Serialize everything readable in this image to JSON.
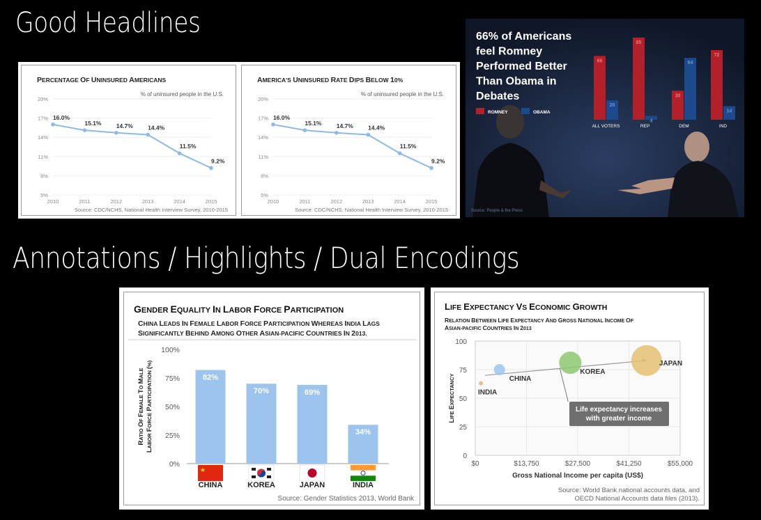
{
  "sections": {
    "good_headlines": "Good Headlines",
    "annotations": "Annotations / Highlights / Dual Encodings"
  },
  "chart_data": [
    {
      "type": "line",
      "title": "Percentage of Uninsured Americans",
      "subtitle": "% of uninsured people in the U.S.",
      "source": "Source: CDC/NCHS, National Health Interview Survey, 2010-2015",
      "x": [
        "2010",
        "2011",
        "2012",
        "2013",
        "2014",
        "2015"
      ],
      "values": [
        16.0,
        15.1,
        14.7,
        14.4,
        11.5,
        9.2
      ],
      "labels": [
        "16.0%",
        "15.1%",
        "14.7%",
        "14.4%",
        "11.5%",
        "9.2%"
      ],
      "yticks": [
        "20%",
        "17%",
        "14%",
        "11%",
        "8%",
        "5%"
      ],
      "ylim": [
        5,
        20
      ],
      "color": "#8db9e4"
    },
    {
      "type": "line",
      "title": "America's Uninsured Rate Dips below 10%",
      "subtitle": "% of uninsured people in the U.S.",
      "source": "Source: CDC/NCHS, National Health Interview Survey, 2010-2015",
      "x": [
        "2010",
        "2011",
        "2012",
        "2013",
        "2014",
        "2015"
      ],
      "values": [
        16.0,
        15.1,
        14.7,
        14.4,
        11.5,
        9.2
      ],
      "labels": [
        "16.0%",
        "15.1%",
        "14.7%",
        "14.4%",
        "11.5%",
        "9.2%"
      ],
      "yticks": [
        "20%",
        "17%",
        "14%",
        "11%",
        "8%",
        "5%"
      ],
      "ylim": [
        5,
        20
      ],
      "color": "#8db9e4"
    },
    {
      "type": "bar",
      "title": "66% of Americans feel Romney Performed Better Than Obama in Debates",
      "title_lines": [
        "66% of Americans",
        "feel Romney",
        "Performed Better",
        "Than Obama in",
        "Debates"
      ],
      "categories": [
        "ALL VOTERS",
        "REP",
        "DEM",
        "IND"
      ],
      "series": [
        {
          "name": "ROMNEY",
          "values": [
            66,
            85,
            30,
            72
          ],
          "labels": [
            "66",
            "85",
            "30",
            "72"
          ],
          "color": "#b3202a"
        },
        {
          "name": "OBAMA",
          "values": [
            20,
            4,
            64,
            14
          ],
          "labels": [
            "20",
            "4",
            "64",
            "14"
          ],
          "color": "#1d4a8c"
        }
      ],
      "ylim": [
        0,
        90
      ],
      "source": "Source: People & the Press"
    },
    {
      "type": "bar",
      "title": "Gender equality in Labor force participation",
      "subtitle_lines": [
        "China leads in female labor force participation whereas India lags",
        "significantly behind among other Asian-Pacific countries in 2013."
      ],
      "ylabel_lines": [
        "Ratio of female to male",
        "labor force participation (%)"
      ],
      "categories": [
        "CHINA",
        "KOREA",
        "JAPAN",
        "INDIA"
      ],
      "values": [
        82,
        70,
        69,
        34
      ],
      "labels": [
        "82%",
        "70%",
        "69%",
        "34%"
      ],
      "yticks": [
        "100%",
        "75%",
        "50%",
        "25%",
        "0%"
      ],
      "ylim": [
        0,
        100
      ],
      "color": "#9cc4ec",
      "source": "Source: Gender Statistics 2013, World Bank"
    },
    {
      "type": "scatter",
      "title": "Life expectancy vs Economic growth",
      "subtitle_lines": [
        "Relation between life expectancy and gross national income of",
        "Asian-Pacific countries in 2013"
      ],
      "xlabel": "Gross National Income per capita (US$)",
      "ylabel": "Life Expectancy",
      "xticks": [
        "$0",
        "$13,750",
        "$27,500",
        "$41,250",
        "$55,000"
      ],
      "yticks": [
        "100",
        "75",
        "50",
        "25",
        "0"
      ],
      "xlim": [
        0,
        55000
      ],
      "ylim": [
        0,
        100
      ],
      "points": [
        {
          "label": "INDIA",
          "x": 1500,
          "y": 63,
          "color": "#e6b57a"
        },
        {
          "label": "CHINA",
          "x": 6500,
          "y": 75,
          "color": "#9cc4ec"
        },
        {
          "label": "KOREA",
          "x": 25500,
          "y": 81,
          "color": "#8cc870"
        },
        {
          "label": "JAPAN",
          "x": 46000,
          "y": 83,
          "color": "#e4c070"
        }
      ],
      "annotation_lines": [
        "Life expectancy increases",
        "with greater income"
      ],
      "source_lines": [
        "Source: World Bank national accounts data, and",
        "OECD National Accounts data files (2013)."
      ]
    }
  ]
}
